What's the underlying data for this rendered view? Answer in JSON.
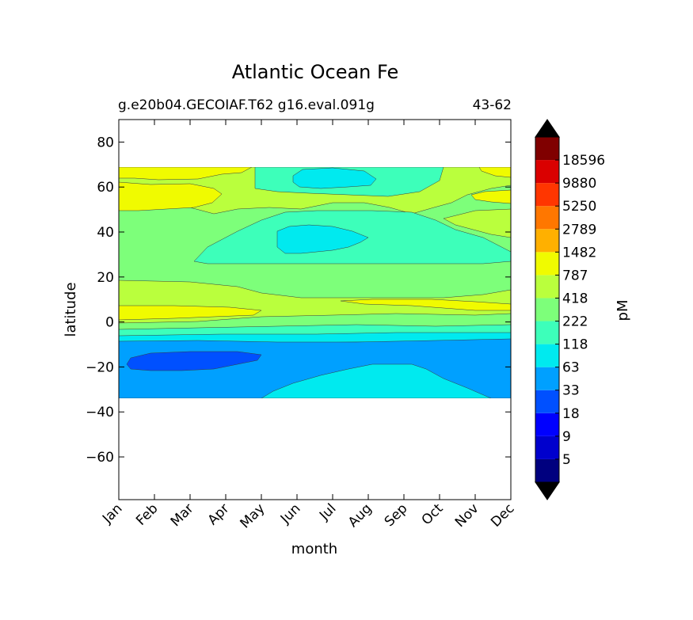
{
  "chart_data": {
    "type": "contourf",
    "title": "Atlantic Ocean Fe",
    "subtitle_left": "g.e20b04.GECOIAF.T62 g16.eval.091g",
    "subtitle_right": "43-62",
    "xlabel": "month",
    "ylabel": "latitude",
    "x_categories": [
      "Jan",
      "Feb",
      "Mar",
      "Apr",
      "May",
      "Jun",
      "Jul",
      "Aug",
      "Sep",
      "Oct",
      "Nov",
      "Dec"
    ],
    "y_ticks": [
      80,
      60,
      40,
      20,
      0,
      -20,
      -40,
      -60
    ],
    "y_tick_labels": [
      "80",
      "60",
      "40",
      "20",
      "0",
      "−20",
      "−40",
      "−60"
    ],
    "ylim": [
      -79,
      90
    ],
    "data_extent_lat": [
      -34,
      69
    ],
    "colorbar": {
      "label": "pM",
      "levels": [
        5,
        9,
        18,
        33,
        63,
        118,
        222,
        418,
        787,
        1482,
        2789,
        5250,
        9880,
        18596
      ],
      "level_labels": [
        "18596",
        "9880",
        "5250",
        "2789",
        "1482",
        "787",
        "418",
        "222",
        "118",
        "63",
        "33",
        "18",
        "9",
        "5"
      ],
      "colors": [
        "#00007f",
        "#0000cd",
        "#0000ff",
        "#0050ff",
        "#00a0ff",
        "#00eaef",
        "#3dffba",
        "#7dff7a",
        "#baff3d",
        "#f0fb00",
        "#ffb000",
        "#ff7700",
        "#ff3600",
        "#da0000",
        "#800000"
      ],
      "under_color": "#000000",
      "over_color": "#000000"
    },
    "bands": [
      {
        "lat_from": 62,
        "lat_to": 69,
        "band": "787-1482",
        "note": "yellow at Jan-Feb and Dec"
      },
      {
        "lat_from": 48,
        "lat_to": 62,
        "band": "787-1482",
        "note": "yellow Jan-Apr"
      },
      {
        "lat_from": 60,
        "lat_to": 68,
        "band": "63-118",
        "note": "cyan core Jun-Jul"
      },
      {
        "lat_from": 28,
        "lat_to": 48,
        "band": "118-222",
        "note": "summer minimum"
      },
      {
        "lat_from": 30,
        "lat_to": 42,
        "band": "63-118",
        "note": "cyan core Jun-Aug"
      },
      {
        "lat_from": 18,
        "lat_to": 28,
        "band": "222-418"
      },
      {
        "lat_from": 8,
        "lat_to": 18,
        "band": "418-787"
      },
      {
        "lat_from": 0,
        "lat_to": 7,
        "band": "787-1482",
        "note": "yellow Jan-May"
      },
      {
        "lat_from": -8,
        "lat_to": 0,
        "band": "222-418 / 118-222"
      },
      {
        "lat_from": -34,
        "lat_to": -9,
        "band": "33-63"
      },
      {
        "lat_from": -23,
        "lat_to": -13,
        "band": "18-33",
        "note": "Feb-Apr"
      },
      {
        "lat_from": -34,
        "lat_to": -18,
        "band": "63-118",
        "note": "Jun-Oct"
      }
    ]
  }
}
